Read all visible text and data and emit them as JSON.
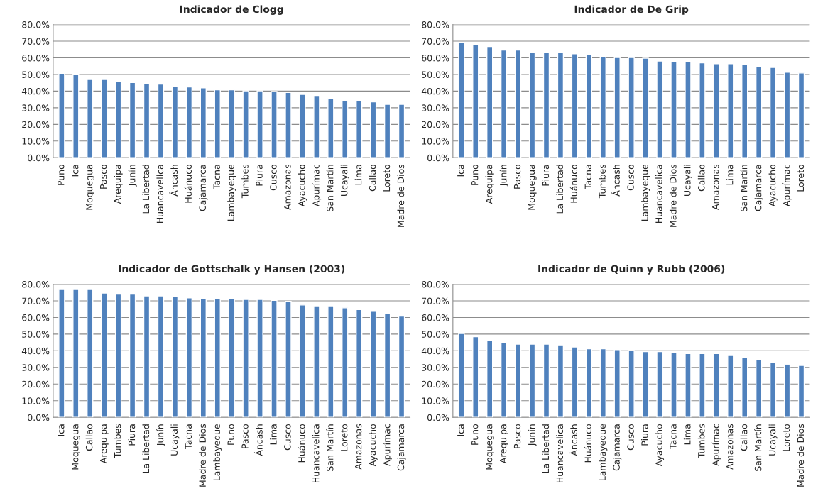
{
  "chart_data": [
    {
      "type": "bar",
      "title": "Indicador de Clogg",
      "grid": "y",
      "ylim": [
        0,
        80
      ],
      "yticks": [
        {
          "value": 0,
          "label": "0.0%"
        },
        {
          "value": 10,
          "label": "10.0%"
        },
        {
          "value": 20,
          "label": "20.0%"
        },
        {
          "value": 30,
          "label": "30.0%"
        },
        {
          "value": 40,
          "label": "40.0%"
        },
        {
          "value": 50,
          "label": "50.0%"
        },
        {
          "value": 60,
          "label": "60.0%"
        },
        {
          "value": 70,
          "label": "70.0%"
        },
        {
          "value": 80,
          "label": "80.0%"
        }
      ],
      "categories": [
        "Puno",
        "Ica",
        "Moquegua",
        "Pasco",
        "Arequipa",
        "Junín",
        "La Libertad",
        "Huancavelica",
        "Áncash",
        "Huánuco",
        "Cajamarca",
        "Tacna",
        "Lambayeque",
        "Tumbes",
        "Piura",
        "Cusco",
        "Amazonas",
        "Ayacucho",
        "Apurímac",
        "San Martín",
        "Ucayali",
        "Lima",
        "Callao",
        "Loreto",
        "Madre de Dios"
      ],
      "series": [
        {
          "color": "#4f81bd",
          "values": [
            50.7,
            50.2,
            47.0,
            47.0,
            45.9,
            45.2,
            44.7,
            44.2,
            43.0,
            42.5,
            42.0,
            40.8,
            40.8,
            40.2,
            40.2,
            39.8,
            39.2,
            38.0,
            37.0,
            35.8,
            34.3,
            34.3,
            33.6,
            32.1,
            32.1
          ]
        }
      ]
    },
    {
      "type": "bar",
      "title": "Indicador de De Grip",
      "grid": "y",
      "ylim": [
        0,
        80
      ],
      "yticks": [
        {
          "value": 0,
          "label": "0.0%"
        },
        {
          "value": 10,
          "label": "10.0%"
        },
        {
          "value": 20,
          "label": "20.0%"
        },
        {
          "value": 30,
          "label": "30.0%"
        },
        {
          "value": 40,
          "label": "40.0%"
        },
        {
          "value": 50,
          "label": "50.0%"
        },
        {
          "value": 60,
          "label": "60.0%"
        },
        {
          "value": 70,
          "label": "70.0%"
        },
        {
          "value": 80,
          "label": "80.0%"
        }
      ],
      "categories": [
        "Ica",
        "Puno",
        "Arequipa",
        "Junín",
        "Pasco",
        "Moquegua",
        "Piura",
        "La Libertad",
        "Huánuco",
        "Tacna",
        "Tumbes",
        "Áncash",
        "Cusco",
        "Lambayeque",
        "Huancavelica",
        "Madre de Dios",
        "Ucayali",
        "Callao",
        "Amazonas",
        "Lima",
        "San Martín",
        "Cajamarca",
        "Ayacucho",
        "Apurímac",
        "Loreto"
      ],
      "series": [
        {
          "color": "#4f81bd",
          "values": [
            69.1,
            68.0,
            66.8,
            64.7,
            64.7,
            63.5,
            63.5,
            63.5,
            62.4,
            61.9,
            60.9,
            60.2,
            60.2,
            59.8,
            58.1,
            57.6,
            57.6,
            57.0,
            56.5,
            56.5,
            55.8,
            54.8,
            54.2,
            51.4,
            50.9
          ]
        }
      ]
    },
    {
      "type": "bar",
      "title": "Indicador de Gottschalk y Hansen (2003)",
      "grid": "y",
      "ylim": [
        0,
        80
      ],
      "yticks": [
        {
          "value": 0,
          "label": "0.0%"
        },
        {
          "value": 10,
          "label": "10.0%"
        },
        {
          "value": 20,
          "label": "20.0%"
        },
        {
          "value": 30,
          "label": "30.0%"
        },
        {
          "value": 40,
          "label": "40.0%"
        },
        {
          "value": 50,
          "label": "50.0%"
        },
        {
          "value": 60,
          "label": "60.0%"
        },
        {
          "value": 70,
          "label": "70.0%"
        },
        {
          "value": 80,
          "label": "80.0%"
        }
      ],
      "categories": [
        "Ica",
        "Moquegua",
        "Callao",
        "Arequipa",
        "Tumbes",
        "Piura",
        "La Libertad",
        "Junín",
        "Ucayali",
        "Tacna",
        "Madre de Dios",
        "Lambayeque",
        "Puno",
        "Pasco",
        "Áncash",
        "Lima",
        "Cusco",
        "Huánuco",
        "Huancavelica",
        "San Martín",
        "Loreto",
        "Amazonas",
        "Ayacucho",
        "Apurímac",
        "Cajamarca"
      ],
      "series": [
        {
          "color": "#4f81bd",
          "values": [
            76.8,
            76.8,
            76.8,
            74.7,
            74.0,
            74.0,
            73.0,
            73.0,
            72.5,
            71.8,
            71.3,
            71.3,
            71.3,
            70.8,
            70.8,
            70.3,
            69.7,
            67.5,
            67.0,
            67.0,
            65.8,
            64.7,
            63.7,
            62.5,
            60.8
          ]
        }
      ]
    },
    {
      "type": "bar",
      "title": "Indicador de Quinn y Rubb (2006)",
      "grid": "y",
      "ylim": [
        0,
        80
      ],
      "yticks": [
        {
          "value": 0,
          "label": "0.0%"
        },
        {
          "value": 10,
          "label": "10.0%"
        },
        {
          "value": 20,
          "label": "20.0%"
        },
        {
          "value": 30,
          "label": "30.0%"
        },
        {
          "value": 40,
          "label": "40.0%"
        },
        {
          "value": 50,
          "label": "50.0%"
        },
        {
          "value": 60,
          "label": "60.0%"
        },
        {
          "value": 70,
          "label": "70.0%"
        },
        {
          "value": 80,
          "label": "80.0%"
        }
      ],
      "categories": [
        "Ica",
        "Puno",
        "Moquegua",
        "Arequipa",
        "Pasco",
        "Junín",
        "La Libertad",
        "Huancavelica",
        "Áncash",
        "Huánuco",
        "Lambayeque",
        "Cajamarca",
        "Cusco",
        "Piura",
        "Ayacucho",
        "Tacna",
        "Lima",
        "Tumbes",
        "Apurímac",
        "Amazonas",
        "Callao",
        "San Martín",
        "Ucayali",
        "Loreto",
        "Madre de Dios"
      ],
      "series": [
        {
          "color": "#4f81bd",
          "values": [
            50.4,
            48.4,
            46.1,
            45.1,
            44.0,
            44.0,
            44.0,
            43.5,
            42.3,
            41.2,
            41.2,
            40.7,
            40.2,
            39.5,
            39.5,
            38.8,
            38.3,
            38.3,
            38.3,
            37.2,
            36.2,
            34.5,
            32.9,
            31.7,
            31.2
          ]
        }
      ]
    }
  ]
}
